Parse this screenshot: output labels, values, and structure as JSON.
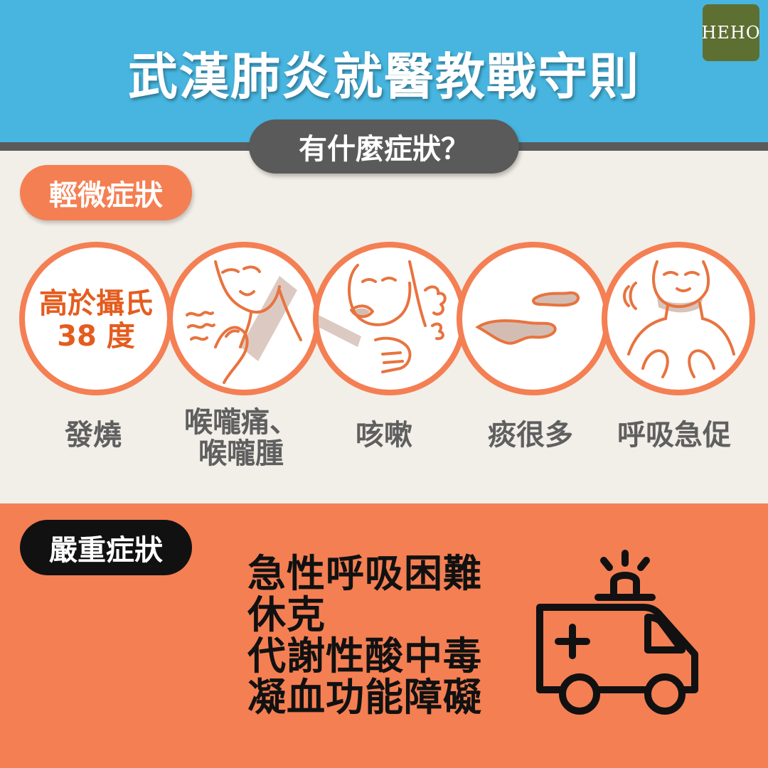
{
  "header": {
    "title": "武漢肺炎就醫教戰守則",
    "logo_text": "HEHO",
    "colors": {
      "band": "#47b5df",
      "logo": "#5e6f32"
    }
  },
  "question": "有什麼症狀？",
  "mild": {
    "title": "輕微症狀",
    "items": [
      {
        "icon": "thermometer-fever-icon",
        "label": "發燒",
        "circle_text": [
          "高於攝氏",
          "38 度"
        ]
      },
      {
        "icon": "sore-throat-icon",
        "label_lines": [
          "喉嚨痛、",
          "喉嚨腫"
        ]
      },
      {
        "icon": "cough-icon",
        "label": "咳嗽"
      },
      {
        "icon": "phlegm-icon",
        "label": "痰很多"
      },
      {
        "icon": "shortness-of-breath-icon",
        "label": "呼吸急促"
      }
    ],
    "colors": {
      "accent": "#f47f53",
      "background": "#f2eee8"
    }
  },
  "severe": {
    "title": "嚴重症狀",
    "items": [
      "急性呼吸困難",
      "休克",
      "代謝性酸中毒",
      "凝血功能障礙"
    ],
    "icon": "ambulance-icon",
    "colors": {
      "background": "#f47f53"
    }
  }
}
